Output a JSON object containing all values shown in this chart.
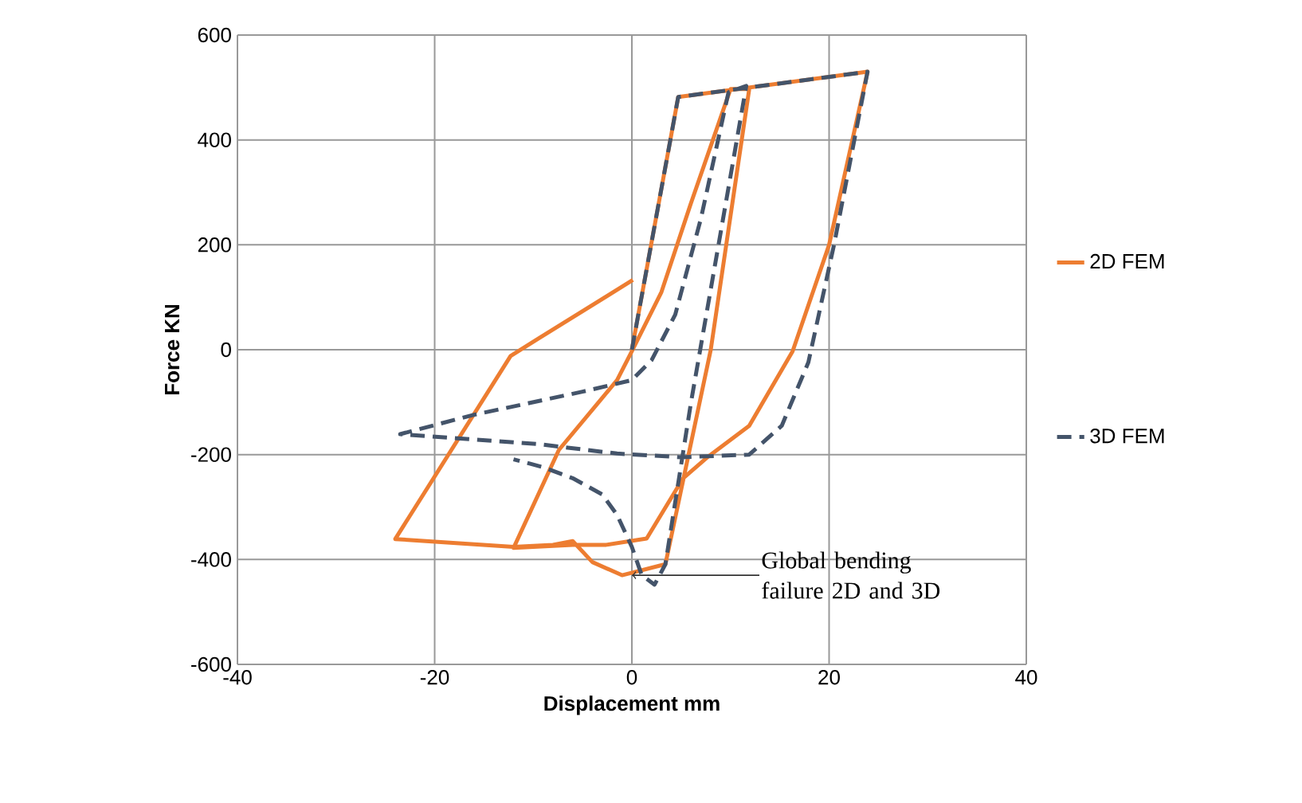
{
  "chart_data": {
    "type": "line",
    "xlabel": "Displacement mm",
    "ylabel": "Force KN",
    "xlim": [
      -40,
      40
    ],
    "xticks": [
      -40,
      -20,
      0,
      20,
      40
    ],
    "ylim": [
      -600,
      600
    ],
    "yticks": [
      -600,
      -400,
      -200,
      0,
      200,
      400,
      600
    ],
    "grid": true,
    "legend": "right",
    "marker": "none",
    "annotations": [
      {
        "text": "Global bending failure 2D and 3D",
        "x": 0,
        "y": -430
      }
    ],
    "series": [
      {
        "name": "2D FEM",
        "color": "#ed7d31",
        "line_style": "solid",
        "x": [
          0,
          4.7,
          23.9,
          20,
          16.3,
          11.9,
          7.6,
          5.2,
          1.5,
          -2.6,
          -6,
          -12,
          -7.4,
          -1.5,
          0,
          3,
          6,
          10,
          11.9,
          8,
          3.4,
          -1,
          -4,
          -6,
          -8,
          -12,
          -24,
          -12.3,
          -9.5,
          0.1
        ],
        "values": [
          0,
          482,
          530,
          200,
          -3,
          -145,
          -206,
          -245,
          -360,
          -372,
          -372,
          -378,
          -191,
          -58,
          -3,
          110,
          280,
          497,
          497,
          0,
          -409,
          -430,
          -405,
          -365,
          -372,
          -376,
          -361,
          -12,
          21,
          133
        ]
      },
      {
        "name": "3D FEM",
        "color": "#44546a",
        "line_style": "dashed",
        "x": [
          0,
          4.7,
          23.9,
          20.5,
          17.9,
          15.2,
          11.9,
          5,
          -1.5,
          -9.5,
          -23.5,
          -16,
          -5,
          0,
          2,
          4.4,
          7,
          9.8,
          11.6,
          6,
          3.4,
          2.3,
          1,
          0,
          -1.5,
          -3,
          -6,
          -9,
          -12
        ],
        "values": [
          0,
          482,
          530,
          200,
          -24,
          -145,
          -200,
          -205,
          -198,
          -180,
          -161,
          -124,
          -80,
          -58,
          -20,
          67,
          250,
          491,
          503,
          -100,
          -409,
          -448,
          -430,
          -376,
          -315,
          -276,
          -245,
          -224,
          -209
        ]
      }
    ]
  }
}
